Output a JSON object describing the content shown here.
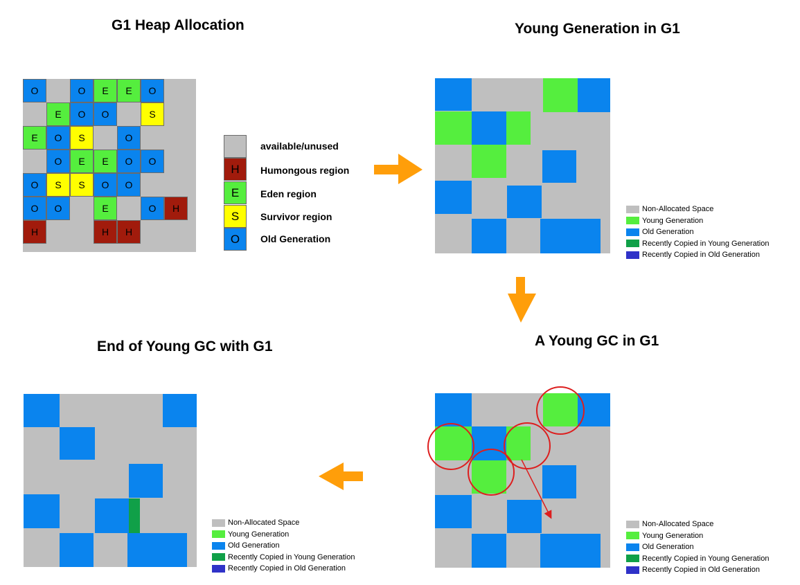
{
  "titles": {
    "heap": "G1 Heap Allocation",
    "young": "Young Generation in G1",
    "gc": "A Young GC in G1",
    "end": "End of Young GC with G1"
  },
  "colors": {
    "unused": "#bfbfbf",
    "humongous": "#a11b0c",
    "eden": "#55ee3e",
    "survivor": "#ffff00",
    "old": "#0a84ee",
    "recent_young": "#10a048",
    "recent_old": "#2f32c8",
    "arrow": "#ff9e0a",
    "circle": "#dd1e1e"
  },
  "heap_key": [
    {
      "letter": "",
      "type": "unused",
      "label": "available/unused"
    },
    {
      "letter": "H",
      "type": "humongous",
      "label": "Humongous region"
    },
    {
      "letter": "E",
      "type": "eden",
      "label": "Eden region"
    },
    {
      "letter": "S",
      "type": "survivor",
      "label": "Survivor region"
    },
    {
      "letter": "O",
      "type": "old",
      "label": "Old Generation"
    }
  ],
  "heap_rows": [
    "O.OEEO.",
    ".EOO.S.",
    "EOS.O..",
    ".OEEOO.",
    "OSSOO..",
    "OO.E.OH",
    "H..HH.."
  ],
  "legend": [
    {
      "type": "unused",
      "label": "Non-Allocated Space"
    },
    {
      "type": "eden",
      "label": "Young Generation"
    },
    {
      "type": "old",
      "label": "Old Generation"
    },
    {
      "type": "recent_young",
      "label": "Recently Copied in Young Generation"
    },
    {
      "type": "recent_old",
      "label": "Recently Copied in Old Generation"
    }
  ]
}
